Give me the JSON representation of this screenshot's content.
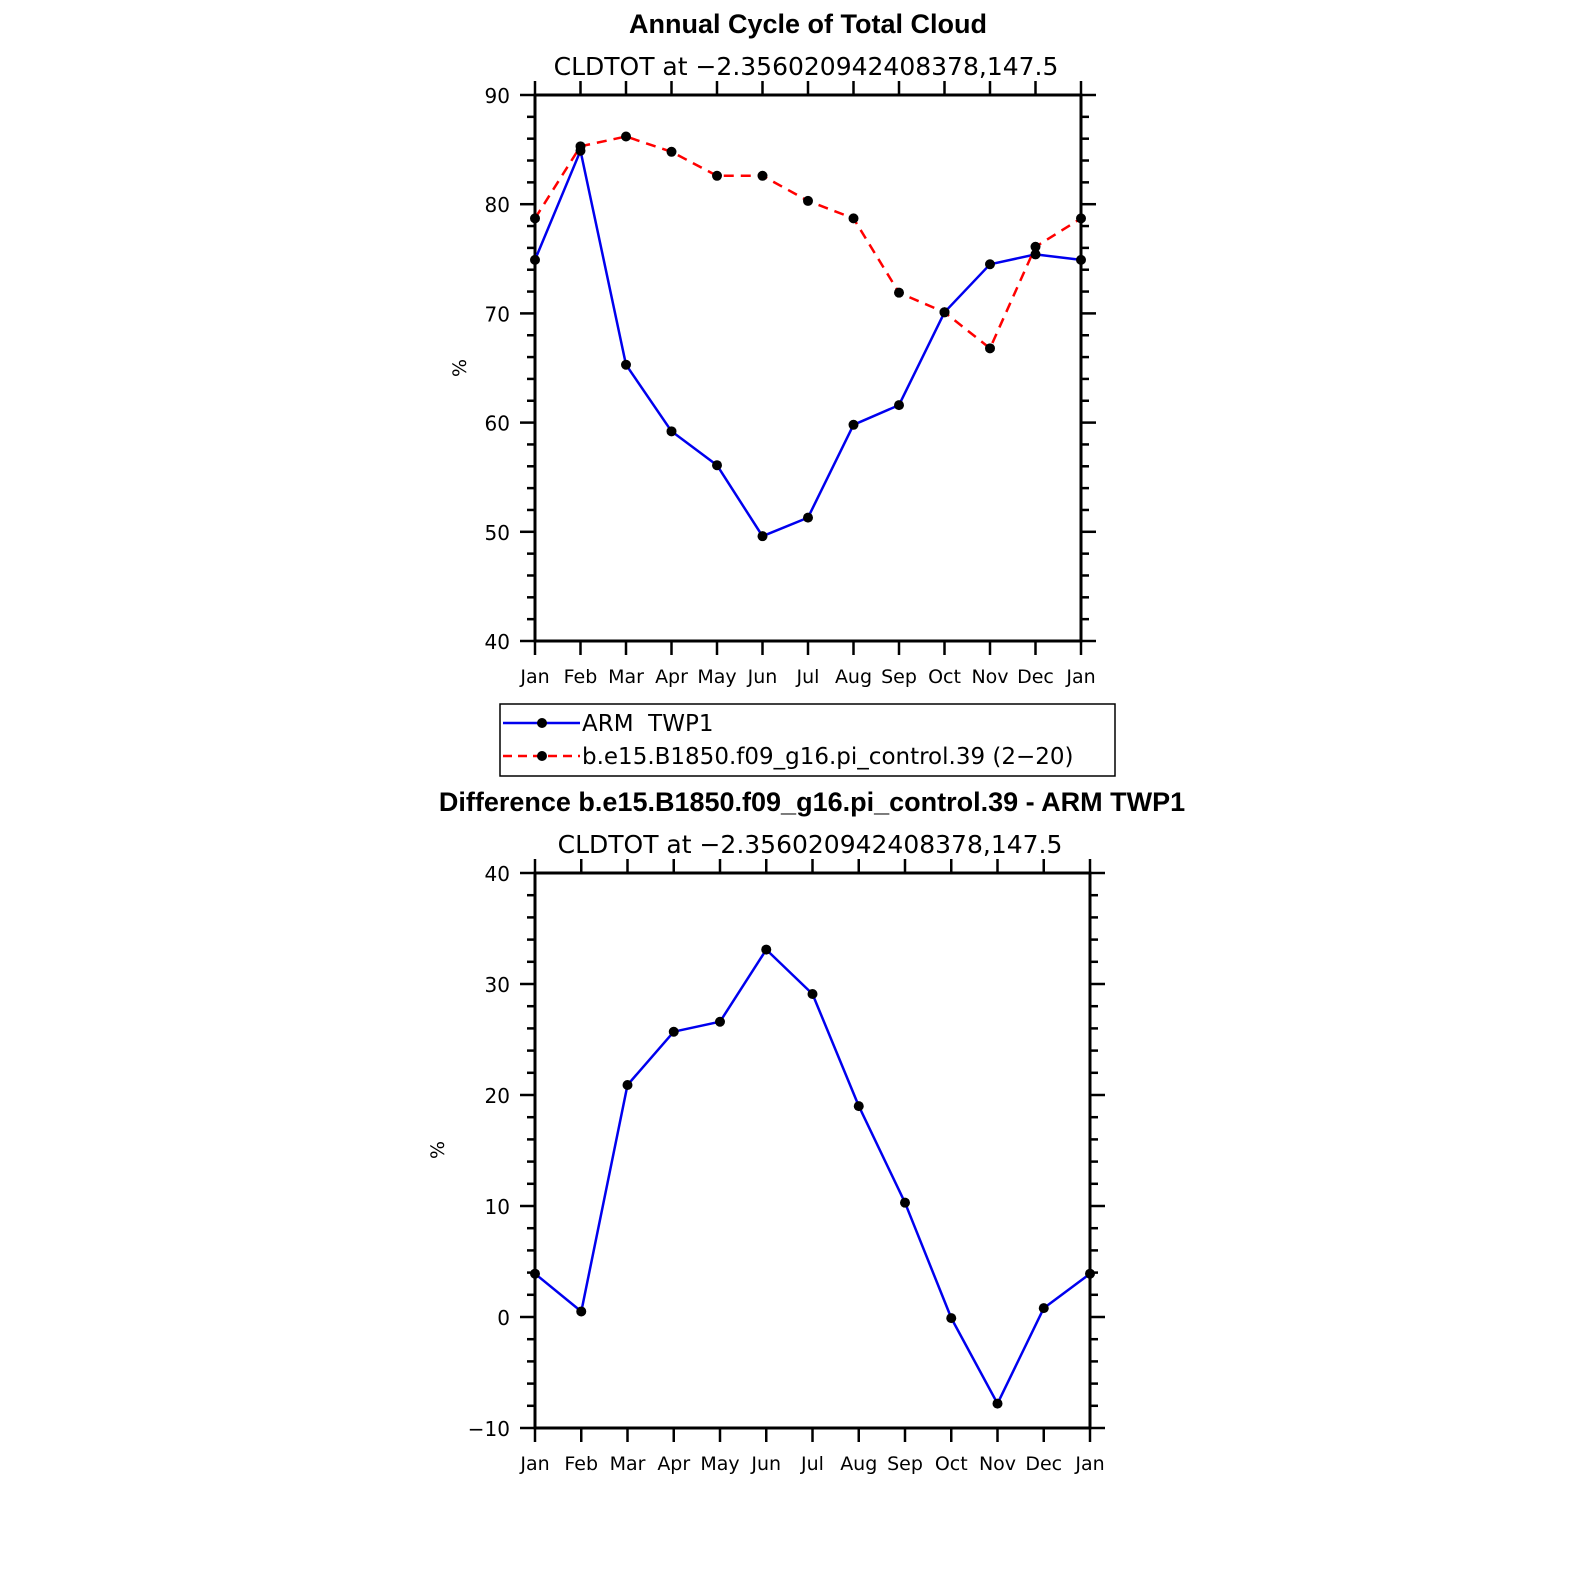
{
  "chart_data": [
    {
      "type": "line",
      "title": "Annual Cycle of Total Cloud",
      "subtitle": "CLDTOT at −2.356020942408378,147.5",
      "xlabel": "",
      "ylabel": "%",
      "ylim": [
        40,
        90
      ],
      "yticks": [
        "90",
        "80",
        "70",
        "60",
        "50",
        "40"
      ],
      "yticks_values": [
        90,
        80,
        70,
        60,
        50,
        40
      ],
      "categories": [
        "Jan",
        "Feb",
        "Mar",
        "Apr",
        "May",
        "Jun",
        "Jul",
        "Aug",
        "Sep",
        "Oct",
        "Nov",
        "Dec",
        "Jan"
      ],
      "series": [
        {
          "name": "ARM  TWP1",
          "color": "#0000ee",
          "dash": "solid",
          "values": [
            74.9,
            84.9,
            65.3,
            59.2,
            56.1,
            49.6,
            51.3,
            59.8,
            61.6,
            70.1,
            74.5,
            75.4,
            74.9
          ]
        },
        {
          "name": "b.e15.B1850.f09_g16.pi_control.39 (2−20)",
          "color": "#ff0000",
          "dash": "dashed",
          "values": [
            78.7,
            85.3,
            86.2,
            84.8,
            82.6,
            82.6,
            80.3,
            78.7,
            71.9,
            70.1,
            66.8,
            76.1,
            78.7
          ]
        }
      ],
      "legend_position": "below"
    },
    {
      "type": "line",
      "title": "Difference b.e15.B1850.f09_g16.pi_control.39 - ARM TWP1",
      "subtitle": "CLDTOT at −2.356020942408378,147.5",
      "xlabel": "",
      "ylabel": "%",
      "ylim": [
        -10,
        40
      ],
      "yticks": [
        "40",
        "30",
        "20",
        "10",
        "0",
        "−10"
      ],
      "yticks_values": [
        40,
        30,
        20,
        10,
        0,
        -10
      ],
      "categories": [
        "Jan",
        "Feb",
        "Mar",
        "Apr",
        "May",
        "Jun",
        "Jul",
        "Aug",
        "Sep",
        "Oct",
        "Nov",
        "Dec",
        "Jan"
      ],
      "series": [
        {
          "name": "Difference",
          "color": "#0000ee",
          "dash": "solid",
          "values": [
            3.9,
            0.5,
            20.9,
            25.7,
            26.6,
            33.1,
            29.1,
            19.0,
            10.3,
            -0.1,
            -7.8,
            0.8,
            3.9
          ]
        }
      ]
    }
  ]
}
